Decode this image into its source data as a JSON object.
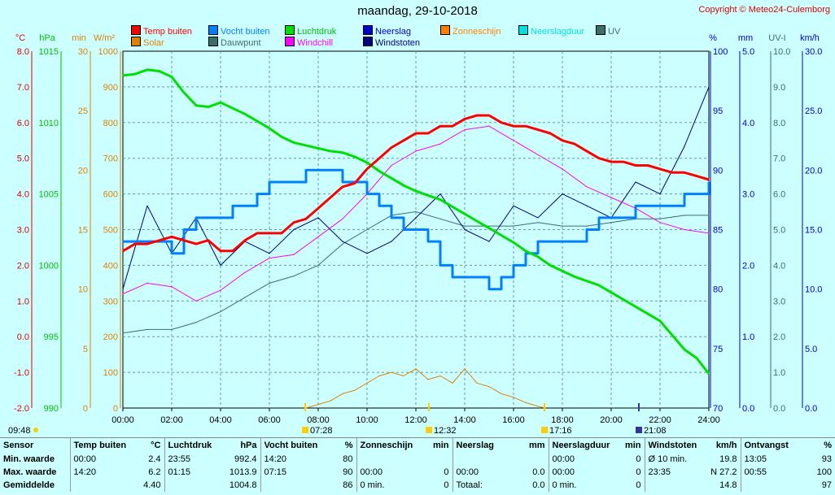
{
  "header": {
    "title": "maandag, 29-10-2018",
    "copyright": "Copyright © Meteo24-Culemborg"
  },
  "legend": [
    {
      "label": "Temp buiten",
      "color": "#ff0000"
    },
    {
      "label": "Vocht buiten",
      "color": "#0080ff"
    },
    {
      "label": "Luchtdruk",
      "color": "#00e000"
    },
    {
      "label": "Neerslag",
      "color": "#0000cc"
    },
    {
      "label": "Zonneschijn",
      "color": "#ff8000"
    },
    {
      "label": "Neerslagduur",
      "color": "#00e0e0"
    },
    {
      "label": "UV",
      "color": "#3b6d6d"
    },
    {
      "label": "Solar",
      "color": "#e08000"
    },
    {
      "label": "Dauwpunt",
      "color": "#3b6d6d"
    },
    {
      "label": "Windchill",
      "color": "#ff00ff"
    },
    {
      "label": "Windstoten",
      "color": "#000080"
    }
  ],
  "axis_units": {
    "temp": "°C",
    "pressure": "hPa",
    "sun_min": "min",
    "solar": "W/m²",
    "humidity": "%",
    "rain": "mm",
    "uv": "UV-I",
    "wind": "km/h"
  },
  "sun_events": {
    "sunrise": "07:28",
    "noon": "12:32",
    "sunset": "17:16",
    "moon": "21:08",
    "first": "09:48"
  },
  "chart_data": {
    "type": "line",
    "title": "maandag, 29-10-2018",
    "x_ticks": [
      "00:00",
      "02:00",
      "04:00",
      "06:00",
      "08:00",
      "10:00",
      "12:00",
      "14:00",
      "16:00",
      "18:00",
      "20:00",
      "22:00",
      "24:00"
    ],
    "x_range_hours": [
      0,
      24
    ],
    "axes": {
      "temp_c": {
        "range": [
          -2,
          8
        ],
        "ticks": [
          "8.0",
          "7.0",
          "6.0",
          "5.0",
          "4.0",
          "3.0",
          "2.0",
          "1.0",
          "0.0",
          "-1.0",
          "-2.0"
        ],
        "color": "#e00000"
      },
      "pressure_hpa": {
        "range": [
          990,
          1015
        ],
        "ticks": [
          "1015",
          "1010",
          "1005",
          "1000",
          "995",
          "990"
        ],
        "color": "#00c000"
      },
      "sun_min": {
        "range": [
          0,
          30
        ],
        "ticks": [
          "30",
          "25",
          "20",
          "15",
          "10",
          "5",
          "0"
        ],
        "color": "#e08000"
      },
      "solar_wm2": {
        "range": [
          0,
          1000
        ],
        "ticks": [
          "1000",
          "900",
          "800",
          "700",
          "600",
          "500",
          "400",
          "300",
          "200",
          "100",
          "0"
        ],
        "color": "#e08000"
      },
      "humidity_pct": {
        "range": [
          70,
          100
        ],
        "ticks": [
          "100",
          "95",
          "90",
          "85",
          "80",
          "75",
          "70"
        ],
        "color": "#0000cc"
      },
      "rain_mm": {
        "range": [
          0,
          5
        ],
        "ticks": [
          "5.0",
          "4.0",
          "3.0",
          "2.0",
          "1.0",
          "0.0"
        ],
        "color": "#0000cc"
      },
      "uv_index": {
        "range": [
          0,
          10
        ],
        "ticks": [
          "10.0",
          "9.0",
          "8.0",
          "7.0",
          "6.0",
          "5.0",
          "4.0",
          "3.0",
          "2.0",
          "1.0",
          "0.0"
        ],
        "color": "#3b6d6d"
      },
      "wind_kmh": {
        "range": [
          0,
          30
        ],
        "ticks": [
          "30.0",
          "25.0",
          "20.0",
          "15.0",
          "10.0",
          "5.0",
          "0.0"
        ],
        "color": "#0000cc"
      }
    },
    "series": [
      {
        "name": "Temp buiten",
        "unit": "°C",
        "color": "#ff0000",
        "x": [
          0,
          0.5,
          1,
          1.5,
          2,
          2.5,
          3,
          3.5,
          4,
          4.5,
          5,
          5.5,
          6,
          6.5,
          7,
          7.5,
          8,
          8.5,
          9,
          9.5,
          10,
          10.5,
          11,
          11.5,
          12,
          12.5,
          13,
          13.5,
          14,
          14.5,
          15,
          15.5,
          16,
          16.5,
          17,
          17.5,
          18,
          18.5,
          19,
          19.5,
          20,
          20.5,
          21,
          21.5,
          22,
          22.5,
          23,
          23.5,
          24
        ],
        "values": [
          2.4,
          2.6,
          2.6,
          2.7,
          2.8,
          2.7,
          2.6,
          2.7,
          2.4,
          2.4,
          2.7,
          2.9,
          2.9,
          2.9,
          3.2,
          3.3,
          3.6,
          3.9,
          4.2,
          4.3,
          4.7,
          5.0,
          5.3,
          5.5,
          5.7,
          5.7,
          5.9,
          5.9,
          6.1,
          6.2,
          6.2,
          6.0,
          5.9,
          5.9,
          5.8,
          5.7,
          5.5,
          5.4,
          5.2,
          5.0,
          4.9,
          4.9,
          4.8,
          4.8,
          4.7,
          4.6,
          4.6,
          4.5,
          4.4
        ]
      },
      {
        "name": "Luchtdruk",
        "unit": "hPa",
        "color": "#00e000",
        "x": [
          0,
          0.5,
          1,
          1.5,
          2,
          2.5,
          3,
          3.5,
          4,
          4.5,
          5,
          5.5,
          6,
          6.5,
          7,
          7.5,
          8,
          8.5,
          9,
          9.5,
          10,
          10.5,
          11,
          11.5,
          12,
          12.5,
          13,
          13.5,
          14,
          14.5,
          15,
          15.5,
          16,
          16.5,
          17,
          17.5,
          18,
          18.5,
          19,
          19.5,
          20,
          20.5,
          21,
          21.5,
          22,
          22.5,
          23,
          23.5,
          24
        ],
        "values": [
          1013.3,
          1013.4,
          1013.7,
          1013.6,
          1013.2,
          1012.1,
          1011.2,
          1011.1,
          1011.4,
          1011.0,
          1010.6,
          1010.1,
          1009.6,
          1009.0,
          1008.6,
          1008.4,
          1008.2,
          1008.0,
          1007.9,
          1007.6,
          1007.2,
          1006.6,
          1006.1,
          1005.6,
          1005.2,
          1004.9,
          1004.6,
          1004.1,
          1003.6,
          1003.1,
          1002.6,
          1002.1,
          1001.6,
          1001.0,
          1000.6,
          1000.0,
          999.6,
          999.2,
          998.9,
          998.6,
          998.1,
          997.6,
          997.1,
          996.6,
          996.1,
          995.1,
          994.1,
          993.5,
          992.4
        ]
      },
      {
        "name": "Vocht buiten",
        "unit": "%",
        "color": "#0080ff",
        "x": [
          0,
          1,
          2,
          2.5,
          3,
          4,
          4.5,
          5,
          5.5,
          6,
          6.5,
          7,
          7.5,
          8,
          8.5,
          9,
          9.5,
          10,
          10.5,
          11,
          11.5,
          12,
          12.5,
          13,
          13.5,
          14,
          14.5,
          15,
          15.5,
          16,
          16.5,
          17,
          17.5,
          18,
          18.5,
          19,
          19.5,
          20,
          20.5,
          21,
          21.5,
          22,
          22.5,
          23,
          23.5,
          24
        ],
        "values": [
          84,
          84,
          83,
          85,
          86,
          86,
          87,
          87,
          88,
          89,
          89,
          89,
          90,
          90,
          90,
          89,
          89,
          88,
          87,
          86,
          85,
          85,
          84,
          82,
          81,
          81,
          81,
          80,
          81,
          82,
          83,
          84,
          84,
          84,
          84,
          85,
          86,
          86,
          86,
          87,
          87,
          87,
          87,
          88,
          88,
          89
        ]
      },
      {
        "name": "Windchill",
        "unit": "°C",
        "color": "#ff00ff",
        "x": [
          0,
          1,
          2,
          3,
          4,
          5,
          6,
          7,
          8,
          9,
          10,
          11,
          12,
          13,
          14,
          15,
          16,
          17,
          18,
          19,
          20,
          21,
          22,
          23,
          24
        ],
        "values": [
          1.2,
          1.5,
          1.4,
          1.0,
          1.3,
          1.8,
          2.2,
          2.3,
          2.8,
          3.3,
          4.0,
          4.8,
          5.2,
          5.4,
          5.8,
          5.9,
          5.5,
          5.1,
          4.7,
          4.2,
          3.9,
          3.6,
          3.2,
          3.0,
          2.9
        ]
      },
      {
        "name": "Dauwpunt",
        "unit": "°C",
        "color": "#3b6d6d",
        "x": [
          0,
          1,
          2,
          3,
          4,
          5,
          6,
          7,
          8,
          9,
          10,
          11,
          12,
          13,
          14,
          15,
          16,
          17,
          18,
          19,
          20,
          21,
          22,
          23,
          24
        ],
        "values": [
          0.1,
          0.2,
          0.2,
          0.4,
          0.7,
          1.1,
          1.5,
          1.7,
          2.0,
          2.6,
          3.0,
          3.4,
          3.5,
          3.3,
          3.1,
          3.1,
          3.1,
          3.2,
          3.1,
          3.1,
          3.2,
          3.3,
          3.3,
          3.4,
          3.4
        ]
      },
      {
        "name": "Windstoten",
        "unit": "km/h",
        "color": "#000080",
        "x": [
          0,
          1,
          2,
          3,
          4,
          5,
          6,
          7,
          8,
          9,
          10,
          11,
          12,
          13,
          14,
          15,
          16,
          17,
          18,
          19,
          20,
          21,
          22,
          23,
          24
        ],
        "values": [
          10,
          17,
          13,
          16,
          12,
          14,
          13,
          15,
          16,
          14,
          13,
          14,
          16,
          18,
          15,
          14,
          17,
          16,
          18,
          17,
          16,
          19,
          18,
          22,
          27
        ]
      },
      {
        "name": "Solar",
        "unit": "W/m²",
        "color": "#e08000",
        "x": [
          7.5,
          8,
          8.5,
          9,
          9.5,
          10,
          10.5,
          11,
          11.5,
          12,
          12.5,
          13,
          13.5,
          14,
          14.5,
          15,
          15.5,
          16,
          16.5,
          17,
          17.3
        ],
        "values": [
          0,
          10,
          20,
          40,
          50,
          70,
          90,
          100,
          90,
          110,
          80,
          90,
          70,
          110,
          70,
          60,
          40,
          30,
          15,
          5,
          0
        ]
      }
    ]
  },
  "stats": {
    "headers": [
      {
        "label": "Sensor",
        "unit": ""
      },
      {
        "label": "Temp buiten",
        "unit": "°C"
      },
      {
        "label": "Luchtdruk",
        "unit": "hPa"
      },
      {
        "label": "Vocht buiten",
        "unit": "%"
      },
      {
        "label": "Zonneschijn",
        "unit": "min"
      },
      {
        "label": "Neerslag",
        "unit": "mm"
      },
      {
        "label": "Neerslagduur",
        "unit": "min"
      },
      {
        "label": "Windstoten",
        "unit": "km/h"
      },
      {
        "label": "Ontvangst",
        "unit": "%"
      }
    ],
    "rows": [
      {
        "label": "Min. waarde",
        "cells": [
          [
            "00:00",
            "2.4"
          ],
          [
            "23:55",
            "992.4"
          ],
          [
            "14:20",
            "80"
          ],
          [
            "",
            ""
          ],
          [
            "",
            ""
          ],
          [
            "00:00",
            "0"
          ],
          [
            "Ø 10 min.",
            "19.8"
          ],
          [
            "13:05",
            "93"
          ]
        ]
      },
      {
        "label": "Max. waarde",
        "cells": [
          [
            "14:20",
            "6.2"
          ],
          [
            "01:15",
            "1013.9"
          ],
          [
            "07:15",
            "90"
          ],
          [
            "00:00",
            "0"
          ],
          [
            "00:00",
            "0.0"
          ],
          [
            "00:00",
            "0"
          ],
          [
            "23:35",
            "N 27.2"
          ],
          [
            "00:55",
            "100"
          ]
        ]
      },
      {
        "label": "Gemiddelde",
        "cells": [
          [
            "",
            "4.40"
          ],
          [
            "",
            "1004.8"
          ],
          [
            "",
            "86"
          ],
          [
            "0 min.",
            "0"
          ],
          [
            "Totaal:",
            "0.0"
          ],
          [
            "0 min.",
            "0"
          ],
          [
            "",
            "14.8"
          ],
          [
            "",
            "97"
          ]
        ]
      }
    ]
  }
}
